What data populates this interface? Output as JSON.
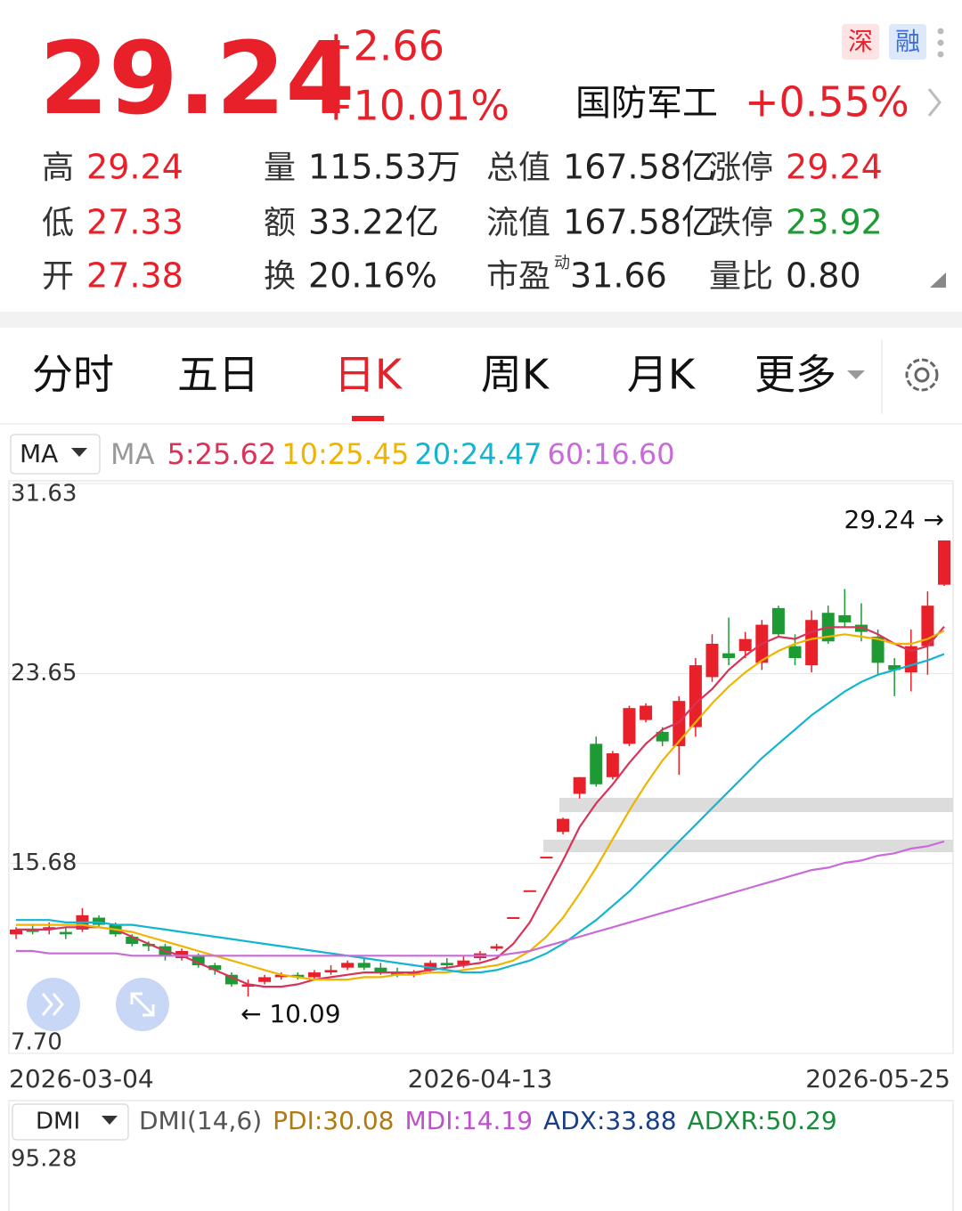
{
  "quote": {
    "price": "29.24",
    "change": "+2.66",
    "change_pct": "+10.01%",
    "badges": [
      "深",
      "融"
    ],
    "sector": "国防军工",
    "sector_change": "+0.55%"
  },
  "stats": [
    [
      {
        "label": "高",
        "value": "29.24",
        "tone": "up"
      },
      {
        "label": "量",
        "value": "115.53万",
        "tone": "flat"
      },
      {
        "label": "总值",
        "value": "167.58亿",
        "tone": "flat"
      },
      {
        "label": "涨停",
        "value": "29.24",
        "tone": "up"
      }
    ],
    [
      {
        "label": "低",
        "value": "27.33",
        "tone": "up"
      },
      {
        "label": "额",
        "value": "33.22亿",
        "tone": "flat"
      },
      {
        "label": "流值",
        "value": "167.58亿",
        "tone": "flat"
      },
      {
        "label": "跌停",
        "value": "23.92",
        "tone": "down"
      }
    ],
    [
      {
        "label": "开",
        "value": "27.38",
        "tone": "up"
      },
      {
        "label": "换",
        "value": "20.16%",
        "tone": "flat"
      },
      {
        "label": "市盈",
        "sup": "动",
        "value": "31.66",
        "tone": "flat"
      },
      {
        "label": "量比",
        "value": "0.80",
        "tone": "flat"
      }
    ]
  ],
  "tabs": [
    "分时",
    "五日",
    "日K",
    "周K",
    "月K",
    "更多"
  ],
  "active_tab": 2,
  "chart_data": {
    "type": "candlestick",
    "indicator_selector": "MA",
    "indicator_label": "MA",
    "categories": [
      "2026-03-04",
      null,
      null,
      null,
      null,
      null,
      null,
      null,
      null,
      null,
      null,
      null,
      null,
      null,
      null,
      null,
      null,
      null,
      null,
      null,
      null,
      null,
      null,
      null,
      null,
      null,
      null,
      null,
      "2026-04-13",
      null,
      null,
      null,
      null,
      null,
      null,
      null,
      null,
      null,
      null,
      null,
      null,
      null,
      null,
      null,
      null,
      null,
      null,
      null,
      null,
      null,
      null,
      null,
      "2026-05-25",
      null,
      null,
      null,
      null
    ],
    "open": [
      12.7,
      12.9,
      12.9,
      12.8,
      12.9,
      13.4,
      13.1,
      12.6,
      12.3,
      12.2,
      11.7,
      11.8,
      11.4,
      11.0,
      10.5,
      10.7,
      10.9,
      11.0,
      10.9,
      11.1,
      11.3,
      11.5,
      11.3,
      11.1,
      11.0,
      11.2,
      11.5,
      11.4,
      11.7,
      12.1,
      13.42,
      14.55,
      15.96,
      17.0,
      18.6,
      20.7,
      19.3,
      20.7,
      21.7,
      21.2,
      20.6,
      21.4,
      23.5,
      24.5,
      24.6,
      24.1,
      26.4,
      24.8,
      24.0,
      26.2,
      26.1,
      25.7,
      25.2,
      24.0,
      23.7,
      24.8,
      27.38
    ],
    "high": [
      13.0,
      13.1,
      13.2,
      13.0,
      13.8,
      13.5,
      13.2,
      12.7,
      12.4,
      12.3,
      12.1,
      11.9,
      11.5,
      11.1,
      10.8,
      11.0,
      11.1,
      11.1,
      11.2,
      11.4,
      11.6,
      11.7,
      11.5,
      11.3,
      11.2,
      11.6,
      11.7,
      11.8,
      12.0,
      12.3,
      13.42,
      14.55,
      15.96,
      17.6,
      19.3,
      21.0,
      20.4,
      22.3,
      22.4,
      21.4,
      22.7,
      24.3,
      25.3,
      26.0,
      25.4,
      25.9,
      26.5,
      25.3,
      26.3,
      26.5,
      27.2,
      26.6,
      25.5,
      24.3,
      25.5,
      27.1,
      29.24
    ],
    "low": [
      12.5,
      12.7,
      12.7,
      12.5,
      12.8,
      13.0,
      12.6,
      12.2,
      12.0,
      11.6,
      11.6,
      11.3,
      11.0,
      10.5,
      10.09,
      10.6,
      10.8,
      10.8,
      10.8,
      11.0,
      11.2,
      11.2,
      11.0,
      10.9,
      10.9,
      11.1,
      11.3,
      11.3,
      11.6,
      12.0,
      13.42,
      14.55,
      15.96,
      16.9,
      18.4,
      18.9,
      19.2,
      20.6,
      21.6,
      20.6,
      19.4,
      21.0,
      23.3,
      24.0,
      24.3,
      23.8,
      25.2,
      24.0,
      23.7,
      24.9,
      25.6,
      25.0,
      23.6,
      22.7,
      22.9,
      23.6,
      27.33
    ],
    "close": [
      12.9,
      12.8,
      13.0,
      12.7,
      13.5,
      13.1,
      12.7,
      12.3,
      12.2,
      11.8,
      12.0,
      11.4,
      11.2,
      10.6,
      10.6,
      10.9,
      11.0,
      10.9,
      11.1,
      11.2,
      11.5,
      11.3,
      11.1,
      11.0,
      11.1,
      11.5,
      11.4,
      11.6,
      11.9,
      12.2,
      13.42,
      14.55,
      15.96,
      17.55,
      19.3,
      19.0,
      20.3,
      22.2,
      22.3,
      20.8,
      22.5,
      24.0,
      24.9,
      24.3,
      25.1,
      25.7,
      25.3,
      24.3,
      25.9,
      25.0,
      25.8,
      25.4,
      24.1,
      23.8,
      24.8,
      26.5,
      29.24
    ],
    "ylim": [
      7.7,
      31.63
    ],
    "yticks": [
      {
        "value": 7.7,
        "label": "7.70"
      },
      15.68,
      23.65,
      31.63
    ],
    "grid": true,
    "up_color": "#e8202a",
    "down_color": "#1e9a34",
    "series": [
      {
        "name": "5:25.62",
        "color": "#d8345a",
        "values": [
          12.9,
          12.9,
          12.9,
          13.0,
          13.0,
          13.0,
          12.9,
          12.6,
          12.3,
          12.0,
          11.8,
          11.5,
          11.2,
          10.9,
          10.6,
          10.5,
          10.5,
          10.6,
          10.8,
          10.9,
          11.0,
          11.1,
          11.1,
          11.1,
          11.1,
          11.2,
          11.3,
          11.4,
          11.5,
          11.7,
          12.3,
          13.2,
          14.5,
          15.8,
          17.2,
          18.2,
          19.0,
          19.9,
          20.7,
          21.3,
          21.6,
          22.4,
          23.0,
          23.8,
          24.4,
          24.9,
          25.2,
          25.1,
          25.4,
          25.6,
          25.6,
          25.6,
          25.3,
          24.9,
          24.6,
          24.8,
          25.62
        ]
      },
      {
        "name": "10:25.45",
        "color": "#f0b400",
        "values": [
          13.1,
          13.1,
          13.1,
          13.1,
          13.1,
          13.0,
          12.9,
          12.8,
          12.6,
          12.4,
          12.2,
          12.0,
          11.8,
          11.6,
          11.4,
          11.2,
          11.0,
          10.9,
          10.8,
          10.8,
          10.8,
          10.9,
          10.9,
          11.0,
          11.0,
          11.1,
          11.1,
          11.2,
          11.3,
          11.4,
          11.6,
          12.0,
          12.6,
          13.4,
          14.4,
          15.5,
          16.7,
          17.9,
          19.0,
          20.0,
          20.8,
          21.6,
          22.4,
          23.1,
          23.7,
          24.2,
          24.6,
          24.9,
          25.1,
          25.2,
          25.3,
          25.2,
          25.1,
          24.9,
          24.9,
          25.1,
          25.45
        ]
      },
      {
        "name": "20:24.47",
        "color": "#12b5d0",
        "values": [
          13.3,
          13.3,
          13.3,
          13.2,
          13.2,
          13.2,
          13.1,
          13.1,
          13.0,
          12.9,
          12.8,
          12.7,
          12.6,
          12.5,
          12.4,
          12.3,
          12.2,
          12.1,
          12.0,
          11.9,
          11.8,
          11.7,
          11.6,
          11.5,
          11.4,
          11.3,
          11.2,
          11.1,
          11.1,
          11.2,
          11.4,
          11.6,
          11.9,
          12.3,
          12.8,
          13.3,
          13.9,
          14.5,
          15.2,
          15.9,
          16.6,
          17.3,
          18.0,
          18.7,
          19.4,
          20.1,
          20.7,
          21.3,
          21.9,
          22.4,
          22.9,
          23.3,
          23.6,
          23.8,
          24.0,
          24.2,
          24.47
        ]
      },
      {
        "name": "60:16.60",
        "color": "#c86bd8",
        "values": [
          12.0,
          12.0,
          11.9,
          11.9,
          11.9,
          11.9,
          11.9,
          11.8,
          11.8,
          11.8,
          11.8,
          11.8,
          11.8,
          11.8,
          11.8,
          11.8,
          11.8,
          11.8,
          11.8,
          11.8,
          11.8,
          11.8,
          11.8,
          11.8,
          11.8,
          11.8,
          11.8,
          11.8,
          11.8,
          11.8,
          11.9,
          12.0,
          12.2,
          12.4,
          12.6,
          12.8,
          13.0,
          13.2,
          13.4,
          13.6,
          13.8,
          14.0,
          14.2,
          14.4,
          14.6,
          14.8,
          15.0,
          15.2,
          15.4,
          15.5,
          15.7,
          15.8,
          16.0,
          16.1,
          16.3,
          16.4,
          16.6
        ]
      }
    ],
    "annotations": [
      "29.24 →",
      "← 10.09"
    ]
  },
  "dmi": {
    "selector": "DMI",
    "name": "DMI(14,6)",
    "items": [
      {
        "text": "PDI:30.08",
        "color": "#b07a10"
      },
      {
        "text": "MDI:14.19",
        "color": "#c050d0"
      },
      {
        "text": "ADX:33.88",
        "color": "#1a3d8a"
      },
      {
        "text": "ADXR:50.29",
        "color": "#1a8a3a"
      }
    ],
    "ytick": "95.28"
  }
}
